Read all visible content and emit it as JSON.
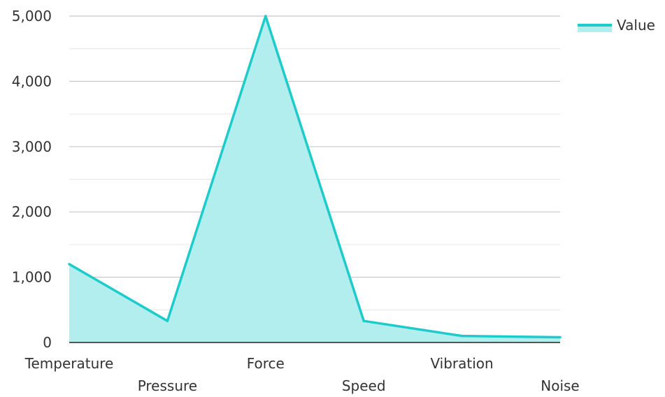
{
  "chart_data": {
    "type": "area",
    "title": "",
    "xlabel": "",
    "ylabel": "",
    "categories": [
      "Temperature",
      "Pressure",
      "Force",
      "Speed",
      "Vibration",
      "Noise"
    ],
    "series": [
      {
        "name": "Value",
        "values": [
          1200,
          330,
          5000,
          330,
          100,
          80
        ],
        "color": "#1ecbcb",
        "fill": "#b2eeee"
      }
    ],
    "ylim": [
      0,
      5000
    ],
    "yticks": [
      0,
      1000,
      2000,
      3000,
      4000,
      5000
    ],
    "ytick_labels": [
      "0",
      "1,000",
      "2,000",
      "3,000",
      "4,000",
      "5,000"
    ],
    "grid": true,
    "legend_position": "top-right"
  }
}
